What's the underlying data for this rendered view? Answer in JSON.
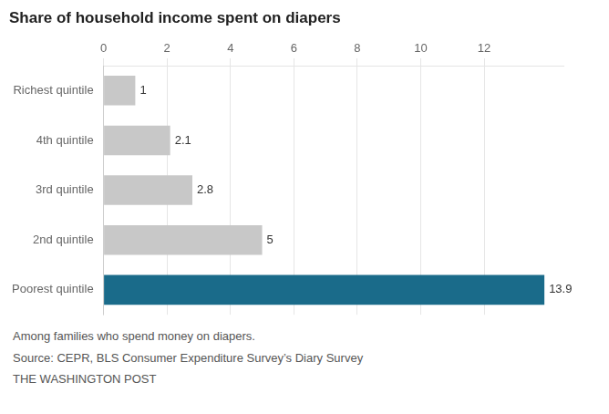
{
  "chart_data": {
    "type": "bar",
    "orientation": "horizontal",
    "title": "Share of household income spent on diapers",
    "categories": [
      "Richest quintile",
      "4th quintile",
      "3rd quintile",
      "2nd quintile",
      "Poorest quintile"
    ],
    "values": [
      1,
      2.1,
      2.8,
      5,
      13.9
    ],
    "colors": [
      "#c8c8c8",
      "#c8c8c8",
      "#c8c8c8",
      "#c8c8c8",
      "#1a6b8a"
    ],
    "xlim": [
      0,
      14.5
    ],
    "xticks": [
      0,
      2,
      4,
      6,
      8,
      10,
      12
    ],
    "grid": true,
    "data_labels": true,
    "annotations": [
      "Among families who spend money on diapers.",
      "Source: CEPR, BLS Consumer Expenditure Survey’s Diary Survey",
      "THE WASHINGTON POST"
    ]
  }
}
